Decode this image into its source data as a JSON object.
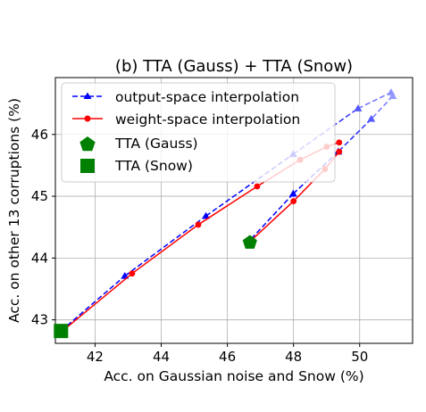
{
  "chart_data": {
    "type": "line",
    "title": "(b) TTA (Gauss) + TTA (Snow)",
    "xlabel": "Acc. on Gaussian noise and Snow (%)",
    "ylabel": "Acc. on other 13 corruptions (%)",
    "xlim": [
      40.8,
      51.6
    ],
    "ylim": [
      42.62,
      46.92
    ],
    "xticks": [
      42,
      44,
      46,
      48,
      50
    ],
    "yticks": [
      43,
      44,
      45,
      46
    ],
    "xtick_labels": [
      "42",
      "44",
      "46",
      "48",
      "50"
    ],
    "ytick_labels": [
      "43",
      "44",
      "45",
      "46"
    ],
    "grid": true,
    "legend_position": "top-left",
    "series": [
      {
        "name": "output-space interpolation",
        "style": "dashed",
        "marker": "triangle",
        "color": "#0000ff",
        "branches": [
          {
            "x": [
              40.97,
              42.9,
              45.35,
              47.99,
              49.95,
              50.95
            ],
            "y": [
              42.82,
              43.71,
              44.68,
              45.68,
              46.42,
              46.68
            ]
          },
          {
            "x": [
              51.0,
              50.35,
              49.35,
              47.99,
              46.65
            ],
            "y": [
              46.62,
              46.25,
              45.72,
              45.04,
              44.27
            ]
          }
        ]
      },
      {
        "name": "weight-space interpolation",
        "style": "solid",
        "marker": "circle",
        "color": "#ff0000",
        "branches": [
          {
            "x": [
              40.97,
              43.12,
              45.12,
              46.9,
              48.2,
              49.0,
              49.38
            ],
            "y": [
              42.8,
              43.75,
              44.54,
              45.16,
              45.59,
              45.8,
              45.87
            ]
          },
          {
            "x": [
              49.38,
              48.95,
              48.0,
              46.65
            ],
            "y": [
              45.72,
              45.44,
              44.92,
              44.25
            ]
          }
        ]
      },
      {
        "name": "TTA (Gauss)",
        "marker": "pentagon",
        "color": "#008000",
        "points": [
          {
            "x": 46.68,
            "y": 44.25
          }
        ]
      },
      {
        "name": "TTA (Snow)",
        "marker": "square",
        "color": "#008000",
        "points": [
          {
            "x": 40.97,
            "y": 42.82
          }
        ]
      }
    ]
  }
}
